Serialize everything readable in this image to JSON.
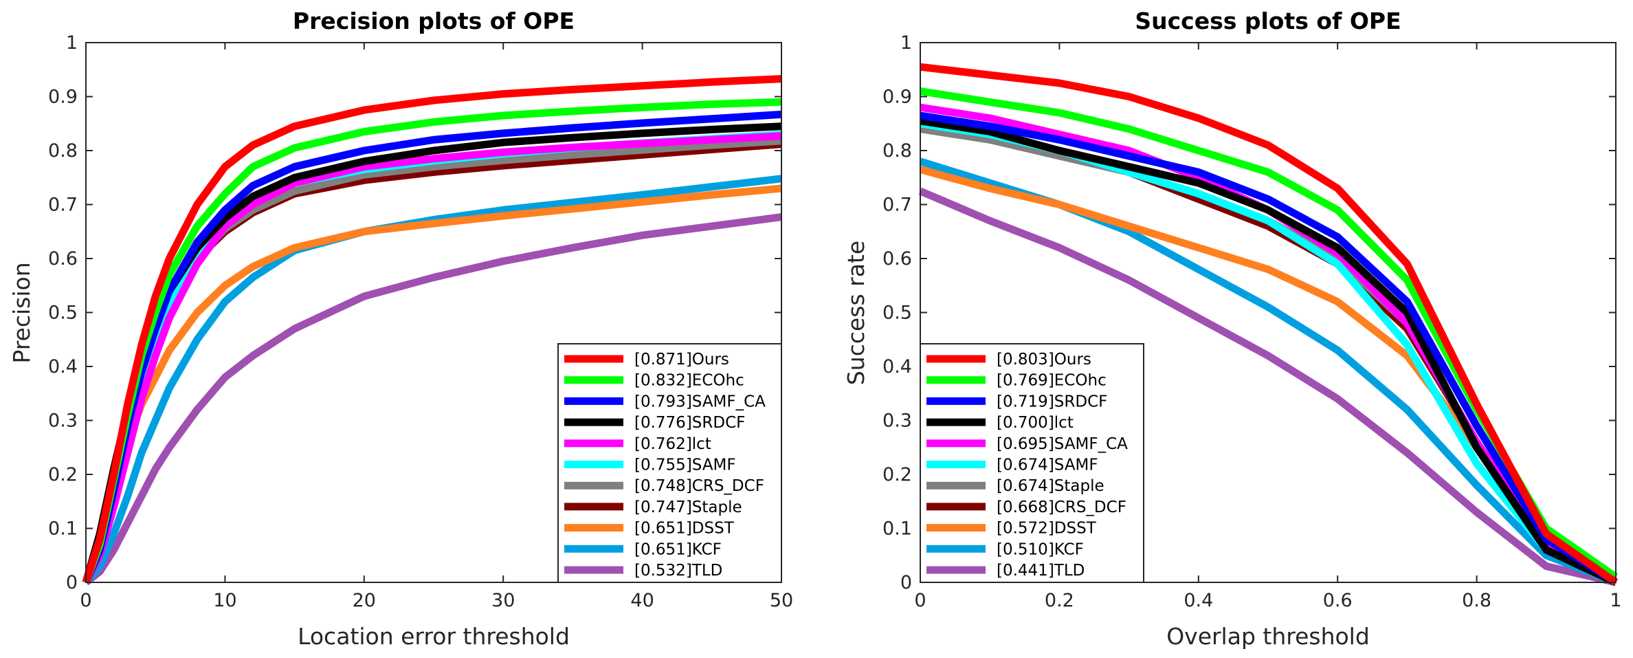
{
  "chart_data": [
    {
      "type": "line",
      "title": "Precision plots of OPE",
      "xlabel": "Location error threshold",
      "ylabel": "Precision",
      "xlim": [
        0,
        50
      ],
      "ylim": [
        0,
        1
      ],
      "xticks": [
        "0",
        "10",
        "20",
        "30",
        "40",
        "50"
      ],
      "yticks": [
        "0",
        "0.1",
        "0.2",
        "0.3",
        "0.4",
        "0.5",
        "0.6",
        "0.7",
        "0.8",
        "0.9",
        "1"
      ],
      "legend_position": "bottom-right",
      "x": [
        0,
        1,
        2,
        3,
        4,
        5,
        6,
        8,
        10,
        12,
        15,
        20,
        25,
        30,
        35,
        40,
        45,
        50
      ],
      "series": [
        {
          "name": "Ours",
          "score": "[0.871]",
          "legend_label": "[0.871]Ours",
          "color": "#ff0000",
          "values": [
            0.0,
            0.08,
            0.2,
            0.33,
            0.44,
            0.53,
            0.6,
            0.7,
            0.77,
            0.81,
            0.845,
            0.875,
            0.893,
            0.905,
            0.913,
            0.92,
            0.927,
            0.933
          ]
        },
        {
          "name": "ECOhc",
          "score": "[0.832]",
          "legend_label": "[0.832]ECOhc",
          "color": "#00ff00",
          "values": [
            0.0,
            0.07,
            0.19,
            0.31,
            0.42,
            0.5,
            0.57,
            0.66,
            0.72,
            0.77,
            0.805,
            0.835,
            0.853,
            0.865,
            0.873,
            0.88,
            0.886,
            0.89
          ]
        },
        {
          "name": "SAMF_CA",
          "score": "[0.793]",
          "legend_label": "[0.793]SAMF_CA",
          "color": "#0000ff",
          "values": [
            0.0,
            0.06,
            0.17,
            0.29,
            0.39,
            0.47,
            0.54,
            0.63,
            0.69,
            0.735,
            0.77,
            0.8,
            0.82,
            0.832,
            0.842,
            0.851,
            0.859,
            0.867
          ]
        },
        {
          "name": "SRDCF",
          "score": "[0.776]",
          "legend_label": "[0.776]SRDCF",
          "color": "#000000",
          "values": [
            0.0,
            0.09,
            0.21,
            0.32,
            0.41,
            0.48,
            0.54,
            0.62,
            0.675,
            0.715,
            0.75,
            0.78,
            0.8,
            0.815,
            0.824,
            0.832,
            0.839,
            0.845
          ]
        },
        {
          "name": "lct",
          "score": "[0.762]",
          "legend_label": "[0.762]lct",
          "color": "#ff00ff",
          "values": [
            0.0,
            0.05,
            0.14,
            0.24,
            0.34,
            0.42,
            0.49,
            0.59,
            0.66,
            0.7,
            0.74,
            0.77,
            0.785,
            0.797,
            0.806,
            0.813,
            0.82,
            0.827
          ]
        },
        {
          "name": "SAMF",
          "score": "[0.755]",
          "legend_label": "[0.755]SAMF",
          "color": "#00ffff",
          "values": [
            0.0,
            0.06,
            0.16,
            0.27,
            0.37,
            0.45,
            0.52,
            0.61,
            0.67,
            0.705,
            0.74,
            0.765,
            0.781,
            0.794,
            0.805,
            0.814,
            0.822,
            0.83
          ]
        },
        {
          "name": "CRS_DCF",
          "score": "[0.748]",
          "legend_label": "[0.748]CRS_DCF",
          "color": "#808080",
          "values": [
            0.0,
            0.07,
            0.18,
            0.29,
            0.38,
            0.46,
            0.52,
            0.6,
            0.655,
            0.69,
            0.725,
            0.755,
            0.77,
            0.782,
            0.792,
            0.801,
            0.81,
            0.818
          ]
        },
        {
          "name": "Staple",
          "score": "[0.747]",
          "legend_label": "[0.747]Staple",
          "color": "#800000",
          "values": [
            0.0,
            0.08,
            0.19,
            0.3,
            0.39,
            0.46,
            0.52,
            0.6,
            0.65,
            0.685,
            0.72,
            0.745,
            0.76,
            0.772,
            0.782,
            0.792,
            0.802,
            0.812
          ]
        },
        {
          "name": "DSST",
          "score": "[0.651]",
          "legend_label": "[0.651]DSST",
          "color": "#ff8020",
          "values": [
            0.0,
            0.08,
            0.17,
            0.26,
            0.33,
            0.38,
            0.43,
            0.5,
            0.55,
            0.585,
            0.62,
            0.65,
            0.665,
            0.679,
            0.692,
            0.705,
            0.718,
            0.73
          ]
        },
        {
          "name": "KCF",
          "score": "[0.651]",
          "legend_label": "[0.651]KCF",
          "color": "#00a0e0",
          "values": [
            0.0,
            0.03,
            0.09,
            0.16,
            0.24,
            0.3,
            0.36,
            0.45,
            0.52,
            0.565,
            0.615,
            0.65,
            0.672,
            0.69,
            0.704,
            0.718,
            0.733,
            0.748
          ]
        },
        {
          "name": "TLD",
          "score": "[0.532]",
          "legend_label": "[0.532]TLD",
          "color": "#a050b0",
          "values": [
            0.0,
            0.02,
            0.06,
            0.11,
            0.16,
            0.21,
            0.25,
            0.32,
            0.38,
            0.42,
            0.47,
            0.53,
            0.565,
            0.595,
            0.62,
            0.643,
            0.66,
            0.677
          ]
        }
      ]
    },
    {
      "type": "line",
      "title": "Success plots of OPE",
      "xlabel": "Overlap threshold",
      "ylabel": "Success rate",
      "xlim": [
        0,
        1
      ],
      "ylim": [
        0,
        1
      ],
      "xticks": [
        "0",
        "0.2",
        "0.4",
        "0.6",
        "0.8",
        "1"
      ],
      "yticks": [
        "0",
        "0.1",
        "0.2",
        "0.3",
        "0.4",
        "0.5",
        "0.6",
        "0.7",
        "0.8",
        "0.9",
        "1"
      ],
      "legend_position": "bottom-left",
      "x": [
        0,
        0.1,
        0.2,
        0.3,
        0.4,
        0.5,
        0.6,
        0.7,
        0.8,
        0.9,
        1.0
      ],
      "series": [
        {
          "name": "Ours",
          "score": "[0.803]",
          "legend_label": "[0.803]Ours",
          "color": "#ff0000",
          "values": [
            0.955,
            0.94,
            0.925,
            0.9,
            0.86,
            0.81,
            0.73,
            0.59,
            0.33,
            0.09,
            0.0
          ]
        },
        {
          "name": "ECOhc",
          "score": "[0.769]",
          "legend_label": "[0.769]ECOhc",
          "color": "#00ff00",
          "values": [
            0.91,
            0.89,
            0.87,
            0.84,
            0.8,
            0.76,
            0.69,
            0.56,
            0.32,
            0.1,
            0.01
          ]
        },
        {
          "name": "SRDCF",
          "score": "[0.719]",
          "legend_label": "[0.719]SRDCF",
          "color": "#0000ff",
          "values": [
            0.865,
            0.845,
            0.82,
            0.79,
            0.76,
            0.71,
            0.64,
            0.52,
            0.29,
            0.08,
            0.0
          ]
        },
        {
          "name": "lct",
          "score": "[0.700]",
          "legend_label": "[0.700]lct",
          "color": "#000000",
          "values": [
            0.855,
            0.835,
            0.8,
            0.77,
            0.74,
            0.69,
            0.62,
            0.5,
            0.25,
            0.06,
            0.0
          ]
        },
        {
          "name": "SAMF_CA",
          "score": "[0.695]",
          "legend_label": "[0.695]SAMF_CA",
          "color": "#ff00ff",
          "values": [
            0.88,
            0.86,
            0.83,
            0.8,
            0.75,
            0.69,
            0.61,
            0.48,
            0.26,
            0.07,
            0.0
          ]
        },
        {
          "name": "SAMF",
          "score": "[0.674]",
          "legend_label": "[0.674]SAMF",
          "color": "#00ffff",
          "values": [
            0.85,
            0.83,
            0.8,
            0.76,
            0.72,
            0.67,
            0.59,
            0.44,
            0.22,
            0.06,
            0.0
          ]
        },
        {
          "name": "Staple",
          "score": "[0.674]",
          "legend_label": "[0.674]Staple",
          "color": "#808080",
          "values": [
            0.84,
            0.82,
            0.79,
            0.76,
            0.72,
            0.67,
            0.6,
            0.48,
            0.26,
            0.07,
            0.0
          ]
        },
        {
          "name": "CRS_DCF",
          "score": "[0.668]",
          "legend_label": "[0.668]CRS_DCF",
          "color": "#800000",
          "values": [
            0.855,
            0.83,
            0.8,
            0.76,
            0.71,
            0.66,
            0.59,
            0.47,
            0.26,
            0.07,
            0.0
          ]
        },
        {
          "name": "DSST",
          "score": "[0.572]",
          "legend_label": "[0.572]DSST",
          "color": "#ff8020",
          "values": [
            0.765,
            0.73,
            0.7,
            0.66,
            0.62,
            0.58,
            0.52,
            0.42,
            0.25,
            0.07,
            0.0
          ]
        },
        {
          "name": "KCF",
          "score": "[0.510]",
          "legend_label": "[0.510]KCF",
          "color": "#00a0e0",
          "values": [
            0.78,
            0.74,
            0.7,
            0.65,
            0.58,
            0.51,
            0.43,
            0.32,
            0.18,
            0.05,
            0.0
          ]
        },
        {
          "name": "TLD",
          "score": "[0.441]",
          "legend_label": "[0.441]TLD",
          "color": "#a050b0",
          "values": [
            0.725,
            0.67,
            0.62,
            0.56,
            0.49,
            0.42,
            0.34,
            0.24,
            0.13,
            0.03,
            0.0
          ]
        }
      ]
    }
  ]
}
